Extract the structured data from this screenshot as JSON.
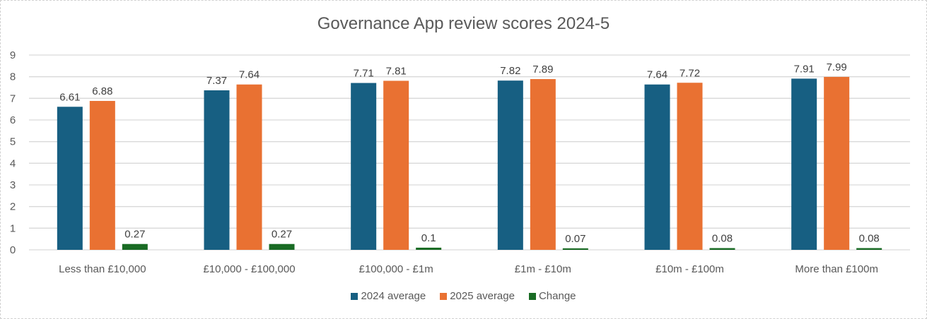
{
  "chart_data": {
    "type": "bar",
    "title": "Governance App review scores 2024-5",
    "xlabel": "",
    "ylabel": "",
    "ylim": [
      0,
      9
    ],
    "yticks": [
      "0",
      "1",
      "2",
      "3",
      "4",
      "5",
      "6",
      "7",
      "8",
      "9"
    ],
    "grid": true,
    "legend_position": "bottom",
    "categories": [
      "Less than £10,000",
      "£10,000 - £100,000",
      "£100,000 - £1m",
      "£1m - £10m",
      "£10m - £100m",
      "More than £100m"
    ],
    "series": [
      {
        "name": "2024 average",
        "color": "#175F82",
        "values": [
          6.61,
          7.37,
          7.71,
          7.82,
          7.64,
          7.91
        ],
        "labels": [
          "6.61",
          "7.37",
          "7.71",
          "7.82",
          "7.64",
          "7.91"
        ]
      },
      {
        "name": "2025 average",
        "color": "#E97132",
        "values": [
          6.88,
          7.64,
          7.81,
          7.89,
          7.72,
          7.99
        ],
        "labels": [
          "6.88",
          "7.64",
          "7.81",
          "7.89",
          "7.72",
          "7.99"
        ]
      },
      {
        "name": "Change",
        "color": "#196B24",
        "values": [
          0.27,
          0.27,
          0.1,
          0.07,
          0.08,
          0.08
        ],
        "labels": [
          "0.27",
          "0.27",
          "0.1",
          "0.07",
          "0.08",
          "0.08"
        ]
      }
    ]
  }
}
